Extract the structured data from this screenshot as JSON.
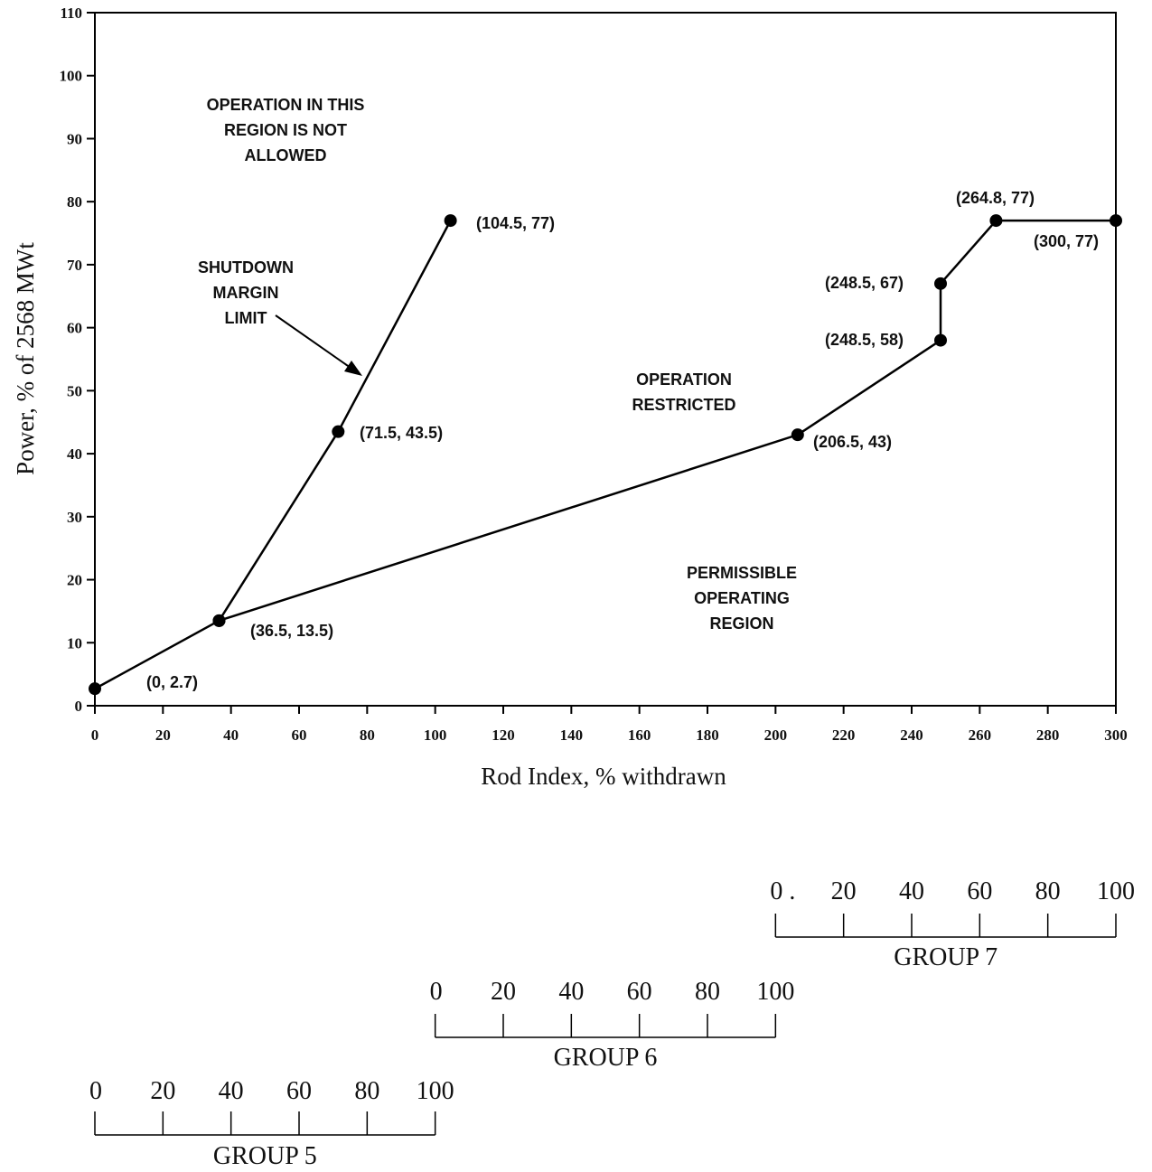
{
  "chart_data": {
    "type": "line",
    "xlabel": "Rod Index, % withdrawn",
    "ylabel": "Power, % of 2568 MWt",
    "xlim": [
      0,
      300
    ],
    "ylim": [
      0,
      110
    ],
    "x_ticks": [
      0,
      20,
      40,
      60,
      80,
      100,
      120,
      140,
      160,
      180,
      200,
      220,
      240,
      260,
      280,
      300
    ],
    "y_ticks": [
      0,
      10,
      20,
      30,
      40,
      50,
      60,
      70,
      80,
      90,
      100,
      110
    ],
    "grid": false,
    "series": [
      {
        "points": [
          {
            "x": 0,
            "y": 2.7,
            "label": "(0, 2.7)"
          },
          {
            "x": 36.5,
            "y": 13.5,
            "label": "(36.5, 13.5)"
          },
          {
            "x": 71.5,
            "y": 43.5,
            "label": "(71.5, 43.5)"
          },
          {
            "x": 104.5,
            "y": 77,
            "label": "(104.5, 77)"
          }
        ]
      },
      {
        "points": [
          {
            "x": 36.5,
            "y": 13.5
          },
          {
            "x": 206.5,
            "y": 43,
            "label": "(206.5, 43)"
          },
          {
            "x": 248.5,
            "y": 58,
            "label": "(248.5, 58)"
          },
          {
            "x": 248.5,
            "y": 67,
            "label": "(248.5, 67)"
          },
          {
            "x": 264.8,
            "y": 77,
            "label": "(264.8, 77)"
          },
          {
            "x": 300,
            "y": 77,
            "label": "(300, 77)"
          }
        ]
      }
    ],
    "regions": [
      {
        "lines": [
          "OPERATION IN THIS",
          "REGION IS NOT",
          "ALLOWED"
        ]
      },
      {
        "lines": [
          "SHUTDOWN",
          "MARGIN",
          "LIMIT"
        ]
      },
      {
        "lines": [
          "OPERATION",
          "RESTRICTED"
        ]
      },
      {
        "lines": [
          "PERMISSIBLE",
          "OPERATING",
          "REGION"
        ]
      }
    ],
    "group_scales": [
      {
        "name": "GROUP 7",
        "start_rod_index": 200,
        "ticks": [
          0,
          20,
          40,
          60,
          80,
          100
        ],
        "tick_labels": [
          "0 .",
          "20",
          "40",
          "60",
          "80",
          "100"
        ]
      },
      {
        "name": "GROUP 6",
        "start_rod_index": 100,
        "ticks": [
          0,
          20,
          40,
          60,
          80,
          100
        ],
        "tick_labels": [
          "0",
          "20",
          "40",
          "60",
          "80",
          "100"
        ]
      },
      {
        "name": "GROUP 5",
        "start_rod_index": 0,
        "ticks": [
          0,
          20,
          40,
          60,
          80,
          100
        ],
        "tick_labels": [
          "0",
          "20",
          "40",
          "60",
          "80",
          "100"
        ]
      }
    ]
  }
}
